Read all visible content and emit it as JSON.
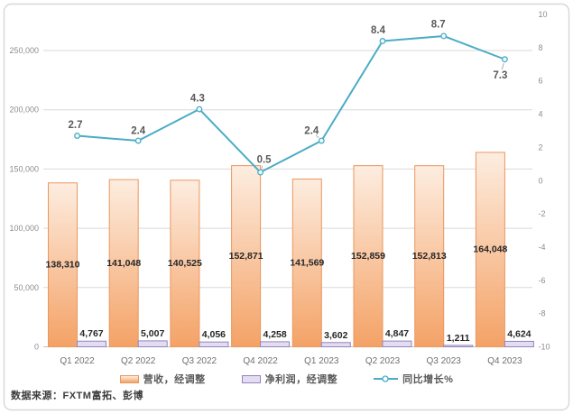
{
  "chart_data": {
    "type": "combo",
    "title": "",
    "categories": [
      "Q1 2022",
      "Q2 2022",
      "Q3 2022",
      "Q4 2022",
      "Q1 2023",
      "Q2 2023",
      "Q3 2023",
      "Q4 2023"
    ],
    "series": [
      {
        "name": "营收，经调整",
        "type": "bar",
        "axis": "primary",
        "values": [
          138310,
          141048,
          140525,
          152871,
          141569,
          152859,
          152813,
          164048
        ],
        "labels": [
          "138,310",
          "141,048",
          "140,525",
          "152,871",
          "141,569",
          "152,859",
          "152,813",
          "164,048"
        ]
      },
      {
        "name": "净利润，经调整",
        "type": "bar",
        "axis": "primary",
        "values": [
          4767,
          5007,
          4056,
          4258,
          3602,
          4847,
          1211,
          4624
        ],
        "labels": [
          "4,767",
          "5,007",
          "4,056",
          "4,258",
          "3,602",
          "4,847",
          "1,211",
          "4,624"
        ]
      },
      {
        "name": "同比增长%",
        "type": "line",
        "axis": "secondary",
        "values": [
          2.7,
          2.4,
          4.3,
          0.5,
          2.4,
          8.4,
          8.7,
          7.3
        ],
        "labels": [
          "2.7",
          "2.4",
          "4.3",
          "0.5",
          "2.4",
          "8.4",
          "8.7",
          "7.3"
        ]
      }
    ],
    "left_axis": {
      "min": 0,
      "step": 50000,
      "tick_labels": [
        "0",
        "50,000",
        "100,000",
        "150,000",
        "200,000",
        "250,000"
      ]
    },
    "right_axis": {
      "min": -10,
      "max": 10,
      "step": 2,
      "tick_labels": [
        "10",
        "8",
        "6",
        "4",
        "2",
        "0",
        "-2",
        "-4",
        "-6",
        "-8",
        "-10"
      ]
    },
    "grid": true,
    "legend_position": "bottom"
  },
  "legend": {
    "items": [
      {
        "label": "营收，经调整"
      },
      {
        "label": "净利润，经调整"
      },
      {
        "label": "同比增长%"
      }
    ]
  },
  "source_note": "数据来源：FXTM富拓、彭博",
  "colors": {
    "revenue_fill_top": "#FDEDE0",
    "revenue_fill_bottom": "#F4A266",
    "revenue_border": "#E9975E",
    "profit_fill": "#E4DDF1",
    "profit_border": "#9384BE",
    "line": "#4BACC6",
    "marker_fill": "#F3FAFC",
    "grid": "#D9D9D9",
    "axis_line": "#C3C3C3",
    "tick_label": "#8C8C8C",
    "category_label": "#6F6F6F",
    "bar_value_label": "#262626",
    "line_value_label": "#595959",
    "leader_line": "#A6A6A6",
    "frame_border": "#D7D7D7",
    "background": "#FFFFFF"
  }
}
